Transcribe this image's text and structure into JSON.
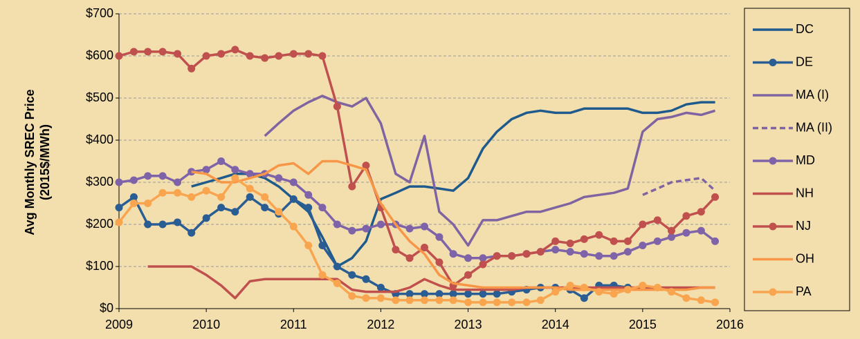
{
  "chart_data": {
    "type": "line",
    "y_label_lines": [
      "Avg Monthly SREC Price",
      "(2015$/MWh)"
    ],
    "x": [
      2009,
      2009.17,
      2009.33,
      2009.5,
      2009.67,
      2009.83,
      2010,
      2010.17,
      2010.33,
      2010.5,
      2010.67,
      2010.83,
      2011,
      2011.17,
      2011.33,
      2011.5,
      2011.67,
      2011.83,
      2012,
      2012.17,
      2012.33,
      2012.5,
      2012.67,
      2012.83,
      2013,
      2013.17,
      2013.33,
      2013.5,
      2013.67,
      2013.83,
      2014,
      2014.17,
      2014.33,
      2014.5,
      2014.67,
      2014.83,
      2015,
      2015.17,
      2015.33,
      2015.5,
      2015.67,
      2015.83
    ],
    "xlim": [
      2009,
      2016
    ],
    "xticks": [
      2009,
      2010,
      2011,
      2012,
      2013,
      2014,
      2015,
      2016
    ],
    "ylim": [
      0,
      700
    ],
    "yticks": [
      {
        "value": 0,
        "label": "$0"
      },
      {
        "value": 100,
        "label": "$100"
      },
      {
        "value": 200,
        "label": "$200"
      },
      {
        "value": 300,
        "label": "$300"
      },
      {
        "value": 400,
        "label": "$400"
      },
      {
        "value": 500,
        "label": "$500"
      },
      {
        "value": 600,
        "label": "$600"
      },
      {
        "value": 700,
        "label": "$700"
      }
    ],
    "grid": true,
    "legend": "right",
    "series": [
      {
        "name": "DC",
        "color": "#1f5a8c",
        "marker": false,
        "dashed": false,
        "values": [
          null,
          null,
          null,
          null,
          null,
          290,
          300,
          310,
          320,
          320,
          310,
          290,
          260,
          230,
          170,
          100,
          120,
          160,
          260,
          275,
          290,
          290,
          285,
          280,
          310,
          380,
          420,
          450,
          465,
          470,
          465,
          465,
          475,
          475,
          475,
          475,
          465,
          465,
          470,
          485,
          490,
          490
        ]
      },
      {
        "name": "DE",
        "color": "#2a5d94",
        "marker": true,
        "dashed": false,
        "values": [
          240,
          265,
          200,
          200,
          205,
          180,
          215,
          240,
          230,
          265,
          240,
          225,
          260,
          240,
          150,
          100,
          80,
          70,
          50,
          35,
          35,
          35,
          35,
          35,
          35,
          35,
          35,
          40,
          45,
          50,
          50,
          45,
          25,
          55,
          55,
          50,
          null,
          null,
          null,
          null,
          null,
          null
        ]
      },
      {
        "name": "MA (I)",
        "color": "#8064a2",
        "marker": false,
        "dashed": false,
        "values": [
          null,
          null,
          null,
          null,
          null,
          null,
          null,
          null,
          null,
          null,
          410,
          440,
          470,
          490,
          505,
          490,
          480,
          500,
          440,
          320,
          300,
          410,
          230,
          200,
          150,
          210,
          210,
          220,
          230,
          230,
          240,
          250,
          265,
          270,
          275,
          285,
          420,
          450,
          455,
          465,
          460,
          470
        ]
      },
      {
        "name": "MA (II)",
        "color": "#8064a2",
        "marker": false,
        "dashed": true,
        "values": [
          null,
          null,
          null,
          null,
          null,
          null,
          null,
          null,
          null,
          null,
          null,
          null,
          null,
          null,
          null,
          null,
          null,
          null,
          null,
          null,
          null,
          null,
          null,
          null,
          null,
          null,
          null,
          null,
          null,
          null,
          null,
          null,
          null,
          null,
          null,
          null,
          270,
          285,
          300,
          305,
          310,
          280
        ]
      },
      {
        "name": "MD",
        "color": "#7f63a8",
        "marker": true,
        "dashed": false,
        "values": [
          300,
          305,
          315,
          315,
          300,
          325,
          330,
          350,
          330,
          320,
          320,
          310,
          300,
          270,
          240,
          200,
          185,
          190,
          200,
          200,
          190,
          195,
          170,
          130,
          120,
          120,
          125,
          125,
          130,
          135,
          140,
          135,
          130,
          125,
          125,
          135,
          150,
          160,
          170,
          180,
          185,
          160
        ]
      },
      {
        "name": "NH",
        "color": "#c0504d",
        "marker": false,
        "dashed": false,
        "values": [
          null,
          null,
          100,
          100,
          100,
          100,
          80,
          55,
          25,
          65,
          70,
          70,
          70,
          70,
          70,
          70,
          45,
          40,
          40,
          40,
          50,
          70,
          55,
          45,
          45,
          45,
          45,
          45,
          50,
          50,
          50,
          50,
          50,
          50,
          50,
          50,
          50,
          50,
          50,
          50,
          50,
          50
        ]
      },
      {
        "name": "NJ",
        "color": "#c0504d",
        "marker": true,
        "dashed": false,
        "values": [
          600,
          610,
          610,
          610,
          605,
          570,
          600,
          605,
          615,
          600,
          595,
          600,
          605,
          605,
          600,
          480,
          290,
          340,
          240,
          140,
          120,
          145,
          110,
          55,
          80,
          105,
          125,
          125,
          130,
          135,
          160,
          155,
          165,
          175,
          160,
          160,
          200,
          210,
          185,
          220,
          230,
          265
        ]
      },
      {
        "name": "OH",
        "color": "#f79646",
        "marker": false,
        "dashed": false,
        "values": [
          null,
          null,
          null,
          null,
          null,
          325,
          320,
          300,
          300,
          310,
          320,
          340,
          345,
          320,
          350,
          350,
          340,
          330,
          250,
          200,
          160,
          130,
          80,
          60,
          55,
          50,
          50,
          50,
          50,
          50,
          50,
          45,
          45,
          45,
          45,
          45,
          45,
          45,
          45,
          45,
          50,
          50
        ]
      },
      {
        "name": "PA",
        "color": "#f9a54f",
        "marker": true,
        "dashed": false,
        "values": [
          205,
          250,
          250,
          275,
          275,
          265,
          280,
          265,
          310,
          285,
          265,
          230,
          195,
          150,
          80,
          60,
          30,
          25,
          25,
          20,
          20,
          20,
          20,
          20,
          15,
          15,
          15,
          15,
          15,
          20,
          40,
          55,
          50,
          40,
          35,
          45,
          55,
          50,
          40,
          25,
          20,
          15
        ]
      }
    ]
  }
}
